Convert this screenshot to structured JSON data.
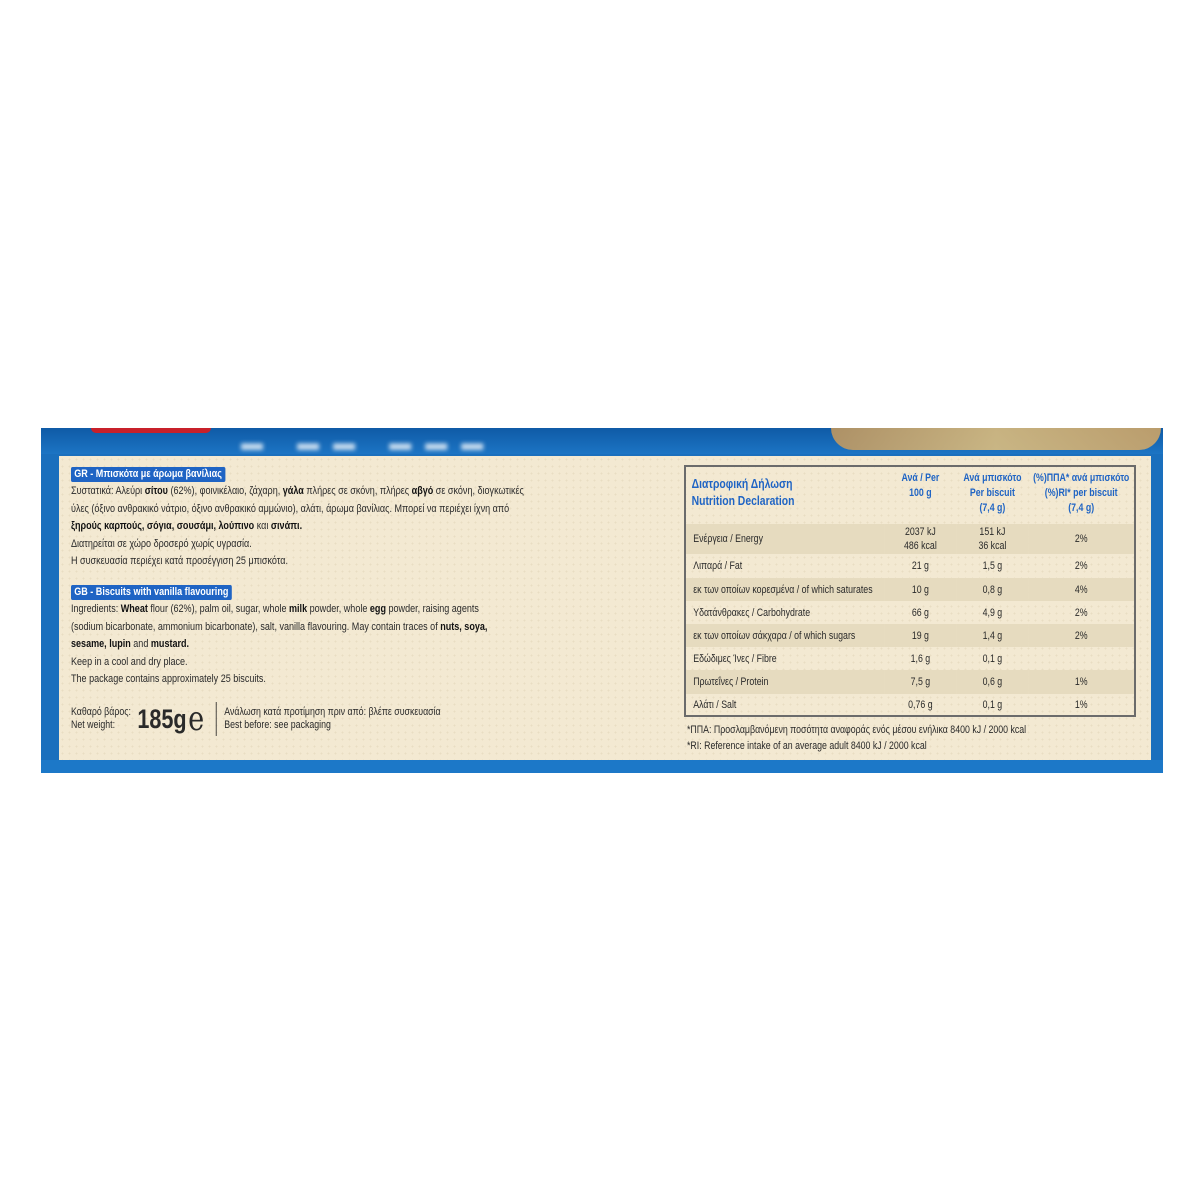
{
  "colors": {
    "box_blue": "#1a6fbd",
    "header_blue": "#1f64c4",
    "panel_cream": "#f3e9d2",
    "row_shade": "#e6dbbf"
  },
  "gr": {
    "heading": "GR - Μπισκότα με άρωμα βανίλιας",
    "lines": [
      [
        {
          "t": "Συστατικά: Αλεύρι "
        },
        {
          "t": "σίτου",
          "b": true
        },
        {
          "t": " (62%), φοινικέλαιο, ζάχαρη, "
        },
        {
          "t": "γάλα",
          "b": true
        },
        {
          "t": " πλήρες σε σκόνη, πλήρες "
        },
        {
          "t": "αβγό",
          "b": true
        },
        {
          "t": " σε σκόνη, διογκωτικές"
        }
      ],
      [
        {
          "t": "ύλες (όξινο ανθρακικό νάτριο, όξινο ανθρακικό αμμώνιο), αλάτι, άρωμα βανίλιας. Μπορεί να περιέχει ίχνη από"
        }
      ],
      [
        {
          "t": "ξηρούς καρπούς, σόγια, σουσάμι, λούπινο",
          "b": true
        },
        {
          "t": " και "
        },
        {
          "t": "σινάπι.",
          "b": true
        }
      ],
      [
        {
          "t": "Διατηρείται σε χώρο δροσερό χωρίς υγρασία."
        }
      ],
      [
        {
          "t": "Η συσκευασία περιέχει κατά προσέγγιση 25 μπισκότα."
        }
      ]
    ]
  },
  "gb": {
    "heading": "GB - Biscuits with vanilla flavouring",
    "lines": [
      [
        {
          "t": "Ingredients: "
        },
        {
          "t": "Wheat",
          "b": true
        },
        {
          "t": " flour (62%), palm oil, sugar, whole "
        },
        {
          "t": "milk",
          "b": true
        },
        {
          "t": " powder, whole "
        },
        {
          "t": "egg",
          "b": true
        },
        {
          "t": " powder, raising agents"
        }
      ],
      [
        {
          "t": "(sodium bicarbonate, ammonium bicarbonate), salt, vanilla flavouring. May contain traces of "
        },
        {
          "t": "nuts, soya,",
          "b": true
        }
      ],
      [
        {
          "t": "sesame, lupin",
          "b": true
        },
        {
          "t": " and "
        },
        {
          "t": "mustard.",
          "b": true
        }
      ],
      [
        {
          "t": "Keep in a cool and dry place."
        }
      ],
      [
        {
          "t": "The package contains approximately 25 biscuits."
        }
      ]
    ]
  },
  "net": {
    "label_gr": "Καθαρό βάρος:",
    "label_en": "Net weight:",
    "value": "185g",
    "estimated_mark": "e",
    "best_before_gr": "Ανάλωση κατά προτίμηση πριν από: βλέπε συσκευασία",
    "best_before_en": "Best before: see packaging"
  },
  "nutrition": {
    "title_gr": "Διατροφική Δήλωση",
    "title_en": "Nutrition Declaration",
    "col1": [
      "Ανά / Per",
      "100 g"
    ],
    "col2": [
      "Ανά μπισκότο",
      "Per biscuit",
      "(7,4 g)"
    ],
    "col3": [
      "(%)ΠΠΑ* ανά μπισκότο",
      "(%)RI* per biscuit",
      "(7,4 g)"
    ],
    "rows": [
      {
        "label": "Ενέργεια / Energy",
        "per100": "2037 kJ",
        "per100b": "486 kcal",
        "perb": "151 kJ",
        "perbb": "36 kcal",
        "ri": "2%"
      },
      {
        "label": "Λιπαρά / Fat",
        "per100": "21 g",
        "perb": "1,5 g",
        "ri": "2%"
      },
      {
        "label": "εκ των οποίων κορεσμένα / of which saturates",
        "per100": "10 g",
        "perb": "0,8 g",
        "ri": "4%"
      },
      {
        "label": "Υδατάνθρακες / Carbohydrate",
        "per100": "66 g",
        "perb": "4,9 g",
        "ri": "2%"
      },
      {
        "label": "εκ των οποίων σάκχαρα / of which sugars",
        "per100": "19 g",
        "perb": "1,4 g",
        "ri": "2%"
      },
      {
        "label": "Εδώδιμες Ίνες / Fibre",
        "per100": "1,6 g",
        "perb": "0,1 g",
        "ri": ""
      },
      {
        "label": "Πρωτεΐνες / Protein",
        "per100": "7,5 g",
        "perb": "0,6 g",
        "ri": "1%"
      },
      {
        "label": "Αλάτι / Salt",
        "per100": "0,76 g",
        "perb": "0,1 g",
        "ri": "1%"
      }
    ],
    "footnote_gr": "*ΠΠΑ: Προσλαμβανόμενη ποσότητα αναφοράς ενός μέσου ενήλικα 8400 kJ / 2000 kcal",
    "footnote_en": "*RI: Reference intake of an average adult 8400 kJ / 2000 kcal"
  }
}
